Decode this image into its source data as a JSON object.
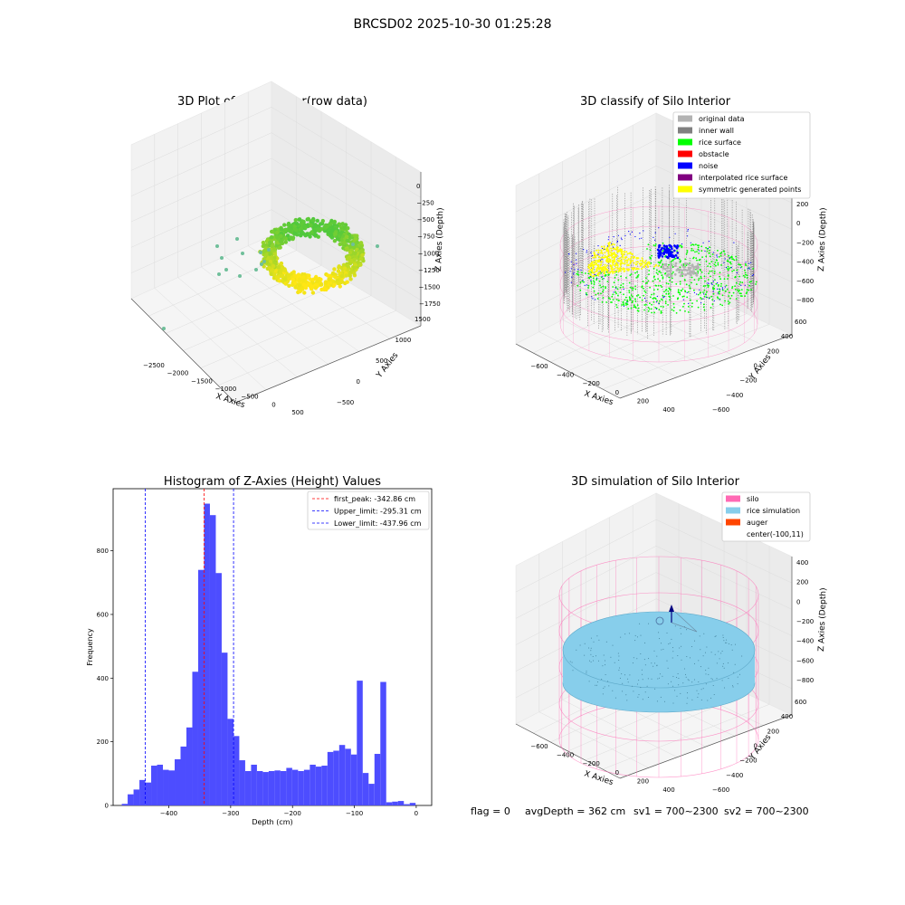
{
  "figure": {
    "suptitle": "BRCSD02 2025-10-30 01:25:28",
    "footer": {
      "flag": "flag = 0",
      "avg_depth": "avgDepth = 362 cm",
      "sv1": "sv1 = 700~2300",
      "sv2": "sv2 = 700~2300"
    }
  },
  "colors": {
    "original_data": "#b3b3b3",
    "inner_wall": "#808080",
    "rice_surface": "#00ff00",
    "obstacle": "#ff0000",
    "noise": "#0000ff",
    "interpolated_rice_surface": "#800080",
    "symmetric_generated_points": "#ffff00",
    "silo": "#ff69b4",
    "rice_simulation": "#87ceeb",
    "auger": "#ff4500",
    "hist_bar": "#4d4dff",
    "first_peak_line": "#ff0000",
    "limit_line": "#0000ff"
  },
  "chart_data": [
    {
      "type": "scatter",
      "projection": "3d",
      "title": "3D Plot of Silo Interior(row data)",
      "xlabel": "X Axies",
      "ylabel": "Y Axies",
      "zlabel": "Z Axies (Depth)",
      "xticks": [
        "−2500",
        "−2000",
        "−1500",
        "−1000",
        "−500",
        "0",
        "500"
      ],
      "yticks": [
        "−500",
        "0",
        "500",
        "1000",
        "1500"
      ],
      "zticks": [
        "0",
        "−250",
        "−500",
        "−750",
        "−1000",
        "−1250",
        "−1500",
        "−1750"
      ],
      "xlim": [
        -2700,
        600
      ],
      "ylim": [
        -700,
        1600
      ],
      "zlim": [
        -1800,
        100
      ],
      "colormap": "viridis-yellow"
    },
    {
      "type": "scatter",
      "projection": "3d",
      "title": "3D classify of Silo Interior",
      "xlabel": "X Axies",
      "ylabel": "Y Axies",
      "zlabel": "Z Axies (Depth)",
      "xticks": [
        "−600",
        "−400",
        "−200",
        "0",
        "200",
        "400"
      ],
      "yticks": [
        "−600",
        "−400",
        "−200",
        "0",
        "200",
        "400",
        "600"
      ],
      "zticks": [
        "200",
        "0",
        "−200",
        "−400",
        "−600",
        "−800"
      ],
      "xlim": [
        -700,
        500
      ],
      "ylim": [
        -650,
        650
      ],
      "zlim": [
        -900,
        300
      ],
      "legend_position": "top-right",
      "legend": [
        {
          "label": "original data",
          "color_key": "original_data"
        },
        {
          "label": "inner wall",
          "color_key": "inner_wall"
        },
        {
          "label": "rice surface",
          "color_key": "rice_surface"
        },
        {
          "label": "obstacle",
          "color_key": "obstacle"
        },
        {
          "label": "noise",
          "color_key": "noise"
        },
        {
          "label": "interpolated rice surface",
          "color_key": "interpolated_rice_surface"
        },
        {
          "label": "symmetric generated points",
          "color_key": "symmetric_generated_points"
        }
      ]
    },
    {
      "type": "bar",
      "title": "Histogram of Z-Axies (Height) Values",
      "xlabel": "Depth (cm)",
      "ylabel": "Frequency",
      "xlim": [
        -490,
        25
      ],
      "ylim": [
        0,
        995
      ],
      "xticks": [
        -400,
        -300,
        -200,
        -100,
        0
      ],
      "xtick_labels": [
        "−400",
        "−300",
        "−200",
        "−100",
        "0"
      ],
      "yticks": [
        0,
        200,
        400,
        600,
        800
      ],
      "yticks_labels": [
        "0",
        "200",
        "400",
        "600",
        "800"
      ],
      "bin_start": -476,
      "bin_width": 9.5,
      "values": [
        5,
        35,
        50,
        80,
        72,
        125,
        128,
        112,
        110,
        145,
        185,
        245,
        420,
        740,
        948,
        912,
        730,
        480,
        272,
        218,
        142,
        108,
        128,
        108,
        105,
        108,
        110,
        108,
        118,
        112,
        108,
        112,
        128,
        122,
        125,
        168,
        172,
        190,
        178,
        160,
        392,
        102,
        68,
        162,
        388,
        10,
        12,
        14,
        4,
        8
      ],
      "vlines": [
        {
          "x": -342.86,
          "label": "first_peak: -342.86 cm",
          "color_key": "first_peak_line"
        },
        {
          "x": -295.31,
          "label": "Upper_limit: -295.31 cm",
          "color_key": "limit_line"
        },
        {
          "x": -437.96,
          "label": "Lower_limit: -437.96 cm",
          "color_key": "limit_line"
        }
      ],
      "legend_position": "top-right"
    },
    {
      "type": "scatter",
      "projection": "3d",
      "title": "3D simulation of Silo Interior",
      "xlabel": "X Axies",
      "ylabel": "Y Axies",
      "zlabel": "Z Axies (Depth)",
      "xticks": [
        "−600",
        "−400",
        "−200",
        "0",
        "200",
        "400"
      ],
      "yticks": [
        "−600",
        "−400",
        "−200",
        "0",
        "200",
        "400",
        "600"
      ],
      "zticks": [
        "400",
        "200",
        "0",
        "−200",
        "−400",
        "−600",
        "−800"
      ],
      "xlim": [
        -700,
        500
      ],
      "ylim": [
        -650,
        650
      ],
      "zlim": [
        -900,
        450
      ],
      "legend_position": "top-right",
      "legend": [
        {
          "label": "silo",
          "color_key": "silo"
        },
        {
          "label": "rice simulation",
          "color_key": "rice_simulation"
        },
        {
          "label": "auger",
          "color_key": "auger"
        },
        {
          "label": "center(-100,11)",
          "color_key": ""
        }
      ]
    }
  ]
}
